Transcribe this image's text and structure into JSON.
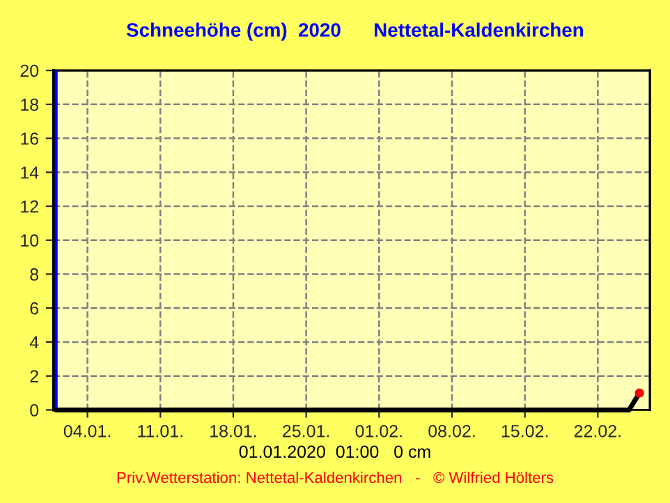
{
  "chart_data": {
    "type": "line",
    "title": "Schneehöhe (cm)  2020      Nettetal-Kaldenkirchen",
    "series": [
      {
        "color": "#000000",
        "values": [
          0,
          0,
          1
        ],
        "x": [
          "2020-01-01",
          "2020-02-25",
          "2020-02-26"
        ]
      },
      {
        "type": "scatter",
        "color": "#ff0000",
        "values": [
          1
        ],
        "x": [
          "2020-02-26"
        ],
        "marker": "circle"
      }
    ],
    "xlim": [
      "2019-12-31T18:00",
      "2020-02-27"
    ],
    "xticks": [
      {
        "value": "2020-01-04",
        "label": "04.01."
      },
      {
        "value": "2020-01-11",
        "label": "11.01."
      },
      {
        "value": "2020-01-18",
        "label": "18.01."
      },
      {
        "value": "2020-01-25",
        "label": "25.01."
      },
      {
        "value": "2020-02-01",
        "label": "01.02."
      },
      {
        "value": "2020-02-08",
        "label": "08.02."
      },
      {
        "value": "2020-02-15",
        "label": "15.02."
      },
      {
        "value": "2020-02-22",
        "label": "22.02."
      }
    ],
    "ylim": [
      0,
      20
    ],
    "yticks": [
      0,
      2,
      4,
      6,
      8,
      10,
      12,
      14,
      16,
      18,
      20
    ],
    "ref_lines": [
      {
        "axis": "x",
        "value": "2020-01-01",
        "color": "#0000ff"
      }
    ],
    "annotations": [
      "01.01.2020  01:00   0 cm",
      "Priv.Wetterstation: Nettetal-Kaldenkirchen   -   © Wilfried Hölters"
    ],
    "grid": true,
    "legend": false,
    "line_style": "solid"
  }
}
